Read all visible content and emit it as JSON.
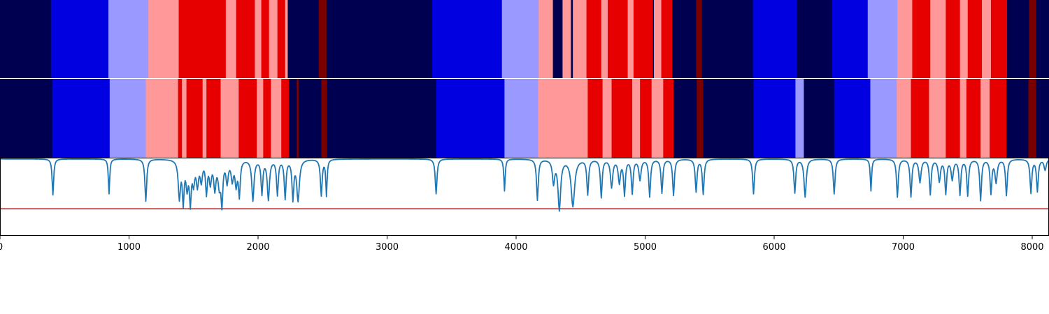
{
  "chart_data": {
    "type": "heatmap",
    "x_range": [
      0,
      8130
    ],
    "xticks": [
      0,
      1000,
      2000,
      3000,
      4000,
      5000,
      6000,
      7000,
      8000
    ],
    "xtick_labels": [
      "0",
      "1000",
      "2000",
      "3000",
      "4000",
      "5000",
      "6000",
      "7000",
      "8000"
    ],
    "colors": {
      "dark_navy": "#000050",
      "blue": "#0000e0",
      "light_blue": "#9999ff",
      "pink": "#ff9999",
      "red": "#e60000",
      "dark_red": "#7a0000",
      "signal_line": "#1f77b4",
      "threshold_line": "#e00000"
    },
    "rows": [
      {
        "segments": [
          [
            0,
            395,
            "dark_navy"
          ],
          [
            395,
            840,
            "blue"
          ],
          [
            840,
            1150,
            "light_blue"
          ],
          [
            1150,
            1385,
            "pink"
          ],
          [
            1385,
            1750,
            "red"
          ],
          [
            1750,
            1830,
            "pink"
          ],
          [
            1830,
            1975,
            "red"
          ],
          [
            1975,
            2025,
            "pink"
          ],
          [
            2025,
            2085,
            "red"
          ],
          [
            2085,
            2150,
            "pink"
          ],
          [
            2150,
            2210,
            "red"
          ],
          [
            2210,
            2230,
            "pink"
          ],
          [
            2230,
            2470,
            "dark_navy"
          ],
          [
            2470,
            2530,
            "dark_red"
          ],
          [
            2530,
            3350,
            "dark_navy"
          ],
          [
            3350,
            3890,
            "blue"
          ],
          [
            3890,
            4175,
            "light_blue"
          ],
          [
            4175,
            4285,
            "pink"
          ],
          [
            4285,
            4360,
            "dark_navy"
          ],
          [
            4360,
            4425,
            "pink"
          ],
          [
            4425,
            4440,
            "dark_navy"
          ],
          [
            4440,
            4545,
            "pink"
          ],
          [
            4545,
            4660,
            "red"
          ],
          [
            4660,
            4710,
            "pink"
          ],
          [
            4710,
            4865,
            "red"
          ],
          [
            4865,
            4910,
            "pink"
          ],
          [
            4910,
            5060,
            "red"
          ],
          [
            5060,
            5068,
            "dark_navy"
          ],
          [
            5068,
            5125,
            "pink"
          ],
          [
            5125,
            5210,
            "red"
          ],
          [
            5210,
            5395,
            "dark_navy"
          ],
          [
            5395,
            5440,
            "dark_red"
          ],
          [
            5440,
            5835,
            "dark_navy"
          ],
          [
            5835,
            6175,
            "blue"
          ],
          [
            6175,
            6450,
            "dark_navy"
          ],
          [
            6450,
            6725,
            "blue"
          ],
          [
            6725,
            6955,
            "light_blue"
          ],
          [
            6955,
            7070,
            "pink"
          ],
          [
            7070,
            7210,
            "red"
          ],
          [
            7210,
            7330,
            "pink"
          ],
          [
            7330,
            7440,
            "red"
          ],
          [
            7440,
            7500,
            "pink"
          ],
          [
            7500,
            7610,
            "red"
          ],
          [
            7610,
            7680,
            "pink"
          ],
          [
            7680,
            7805,
            "red"
          ],
          [
            7805,
            7975,
            "dark_navy"
          ],
          [
            7975,
            8030,
            "dark_red"
          ],
          [
            8030,
            8130,
            "dark_navy"
          ]
        ]
      },
      {
        "segments": [
          [
            0,
            405,
            "dark_navy"
          ],
          [
            405,
            850,
            "blue"
          ],
          [
            850,
            1130,
            "light_blue"
          ],
          [
            1130,
            1380,
            "pink"
          ],
          [
            1380,
            1410,
            "red"
          ],
          [
            1410,
            1445,
            "pink"
          ],
          [
            1445,
            1570,
            "red"
          ],
          [
            1570,
            1600,
            "pink"
          ],
          [
            1600,
            1710,
            "red"
          ],
          [
            1710,
            1850,
            "pink"
          ],
          [
            1850,
            1990,
            "red"
          ],
          [
            1990,
            2040,
            "pink"
          ],
          [
            2040,
            2100,
            "red"
          ],
          [
            2100,
            2180,
            "pink"
          ],
          [
            2180,
            2240,
            "red"
          ],
          [
            2240,
            2300,
            "dark_navy"
          ],
          [
            2300,
            2315,
            "dark_red"
          ],
          [
            2315,
            2490,
            "dark_navy"
          ],
          [
            2490,
            2535,
            "dark_red"
          ],
          [
            2535,
            3380,
            "dark_navy"
          ],
          [
            3380,
            3910,
            "blue"
          ],
          [
            3910,
            4170,
            "light_blue"
          ],
          [
            4170,
            4555,
            "pink"
          ],
          [
            4555,
            4670,
            "red"
          ],
          [
            4670,
            4740,
            "pink"
          ],
          [
            4740,
            4900,
            "red"
          ],
          [
            4900,
            4960,
            "pink"
          ],
          [
            4960,
            5050,
            "red"
          ],
          [
            5050,
            5140,
            "pink"
          ],
          [
            5140,
            5220,
            "red"
          ],
          [
            5220,
            5400,
            "dark_navy"
          ],
          [
            5400,
            5450,
            "dark_red"
          ],
          [
            5450,
            5840,
            "dark_navy"
          ],
          [
            5840,
            6165,
            "blue"
          ],
          [
            6165,
            6230,
            "light_blue"
          ],
          [
            6230,
            6465,
            "dark_navy"
          ],
          [
            6465,
            6745,
            "blue"
          ],
          [
            6745,
            6950,
            "light_blue"
          ],
          [
            6950,
            7060,
            "pink"
          ],
          [
            7060,
            7200,
            "red"
          ],
          [
            7200,
            7330,
            "pink"
          ],
          [
            7330,
            7440,
            "red"
          ],
          [
            7440,
            7490,
            "pink"
          ],
          [
            7490,
            7600,
            "red"
          ],
          [
            7600,
            7670,
            "pink"
          ],
          [
            7670,
            7800,
            "red"
          ],
          [
            7800,
            7970,
            "dark_navy"
          ],
          [
            7970,
            8030,
            "dark_red"
          ],
          [
            8030,
            8130,
            "dark_navy"
          ]
        ]
      }
    ],
    "signal": {
      "baseline": 0.98,
      "threshold": 0.15,
      "y_range": [
        -0.3,
        1.0
      ],
      "dips": [
        [
          410,
          0.38,
          7
        ],
        [
          845,
          0.4,
          6
        ],
        [
          1130,
          0.28,
          8
        ],
        [
          1390,
          0.35,
          10
        ],
        [
          1420,
          0.3,
          8
        ],
        [
          1450,
          0.55,
          10
        ],
        [
          1475,
          0.3,
          8
        ],
        [
          1500,
          0.62,
          10
        ],
        [
          1530,
          0.58,
          10
        ],
        [
          1560,
          0.65,
          10
        ],
        [
          1600,
          0.45,
          8
        ],
        [
          1630,
          0.62,
          10
        ],
        [
          1665,
          0.52,
          10
        ],
        [
          1700,
          0.58,
          12
        ],
        [
          1720,
          0.3,
          8
        ],
        [
          1760,
          0.62,
          10
        ],
        [
          1800,
          0.66,
          10
        ],
        [
          1830,
          0.58,
          10
        ],
        [
          1855,
          0.4,
          8
        ],
        [
          1960,
          0.3,
          10
        ],
        [
          2030,
          0.42,
          8
        ],
        [
          2080,
          0.32,
          10
        ],
        [
          2150,
          0.4,
          8
        ],
        [
          2210,
          0.34,
          8
        ],
        [
          2270,
          0.34,
          8
        ],
        [
          2310,
          0.3,
          12
        ],
        [
          2490,
          0.38,
          8
        ],
        [
          2530,
          0.38,
          6
        ],
        [
          3380,
          0.4,
          8
        ],
        [
          3910,
          0.45,
          6
        ],
        [
          4165,
          0.3,
          8
        ],
        [
          4290,
          0.6,
          10
        ],
        [
          4335,
          0.15,
          12
        ],
        [
          4440,
          0.2,
          16
        ],
        [
          4555,
          0.4,
          8
        ],
        [
          4660,
          0.35,
          8
        ],
        [
          4740,
          0.52,
          10
        ],
        [
          4800,
          0.6,
          10
        ],
        [
          4840,
          0.4,
          8
        ],
        [
          4900,
          0.42,
          8
        ],
        [
          4960,
          0.64,
          10
        ],
        [
          5035,
          0.36,
          8
        ],
        [
          5130,
          0.42,
          8
        ],
        [
          5220,
          0.38,
          8
        ],
        [
          5395,
          0.44,
          8
        ],
        [
          5450,
          0.4,
          8
        ],
        [
          5840,
          0.4,
          8
        ],
        [
          6160,
          0.42,
          8
        ],
        [
          6240,
          0.35,
          10
        ],
        [
          6465,
          0.4,
          8
        ],
        [
          6750,
          0.45,
          6
        ],
        [
          6955,
          0.35,
          8
        ],
        [
          7060,
          0.36,
          8
        ],
        [
          7130,
          0.6,
          10
        ],
        [
          7210,
          0.4,
          8
        ],
        [
          7280,
          0.62,
          10
        ],
        [
          7330,
          0.42,
          8
        ],
        [
          7380,
          0.65,
          10
        ],
        [
          7440,
          0.4,
          8
        ],
        [
          7500,
          0.38,
          8
        ],
        [
          7600,
          0.3,
          8
        ],
        [
          7680,
          0.42,
          8
        ],
        [
          7720,
          0.6,
          10
        ],
        [
          7800,
          0.38,
          8
        ],
        [
          7990,
          0.42,
          8
        ],
        [
          8040,
          0.45,
          8
        ],
        [
          8100,
          0.8,
          10
        ]
      ]
    }
  }
}
